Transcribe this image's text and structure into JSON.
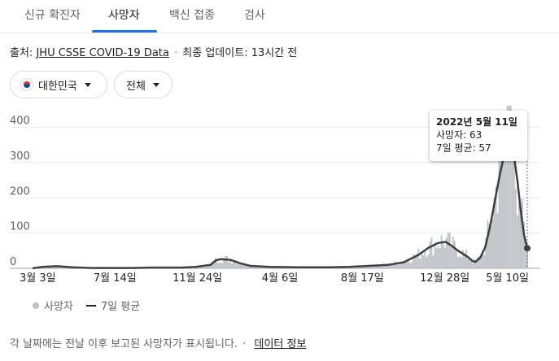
{
  "tabs": [
    {
      "label": "신규 확진자",
      "active": false
    },
    {
      "label": "사망자",
      "active": true
    },
    {
      "label": "백신 접종",
      "active": false
    },
    {
      "label": "검사",
      "active": false
    }
  ],
  "source": {
    "prefix": "출처:",
    "link": "JHU CSSE COVID-19 Data",
    "separator": "·",
    "updated": "최종 업데이트: 13시간 전"
  },
  "filters": {
    "region": {
      "label": "대한민국",
      "icon": "korea-flag-icon"
    },
    "range": {
      "label": "전체"
    }
  },
  "tooltip": {
    "date": "2022년 5월 11일",
    "deaths": "사망자: 63",
    "avg": "7일 평균: 57"
  },
  "legend": {
    "deaths": "사망자",
    "avg": "7일 평균"
  },
  "footer": {
    "text": "각 날짜에는 전날 이후 보고된 사망자가 표시됩니다.",
    "separator": "·",
    "link": "데이터 정보"
  },
  "colors": {
    "accent": "#1a73e8",
    "bars": "#bdc1c6",
    "line": "#3c4043"
  },
  "chart_data": {
    "type": "bar",
    "yticks": [
      0,
      100,
      200,
      300,
      400
    ],
    "ylim": [
      0,
      420
    ],
    "xticks": [
      "3월 3일",
      "7월 14일",
      "11월 24일",
      "4월 6일",
      "8월 17일",
      "12월 28일",
      "5월 10일"
    ],
    "series": [
      {
        "name": "사망자",
        "kind": "bar"
      },
      {
        "name": "7일 평균",
        "kind": "line"
      }
    ],
    "avg_points": [
      [
        0,
        0
      ],
      [
        0.02,
        4
      ],
      [
        0.05,
        6
      ],
      [
        0.08,
        3
      ],
      [
        0.12,
        1
      ],
      [
        0.16,
        1
      ],
      [
        0.2,
        1
      ],
      [
        0.24,
        2
      ],
      [
        0.3,
        2
      ],
      [
        0.33,
        4
      ],
      [
        0.36,
        10
      ],
      [
        0.37,
        22
      ],
      [
        0.38,
        26
      ],
      [
        0.4,
        24
      ],
      [
        0.42,
        14
      ],
      [
        0.44,
        7
      ],
      [
        0.48,
        4
      ],
      [
        0.54,
        3
      ],
      [
        0.6,
        3
      ],
      [
        0.64,
        4
      ],
      [
        0.68,
        7
      ],
      [
        0.72,
        10
      ],
      [
        0.75,
        17
      ],
      [
        0.78,
        38
      ],
      [
        0.8,
        58
      ],
      [
        0.82,
        72
      ],
      [
        0.835,
        75
      ],
      [
        0.845,
        66
      ],
      [
        0.86,
        50
      ],
      [
        0.88,
        32
      ],
      [
        0.89,
        20
      ],
      [
        0.895,
        18
      ],
      [
        0.905,
        30
      ],
      [
        0.915,
        60
      ],
      [
        0.925,
        120
      ],
      [
        0.935,
        195
      ],
      [
        0.945,
        270
      ],
      [
        0.955,
        330
      ],
      [
        0.963,
        350
      ],
      [
        0.972,
        330
      ],
      [
        0.98,
        250
      ],
      [
        0.988,
        150
      ],
      [
        0.994,
        90
      ],
      [
        1.0,
        57
      ]
    ],
    "tooltip_point": {
      "date": "2022년 5월 11일",
      "deaths": 63,
      "avg": 57
    }
  }
}
